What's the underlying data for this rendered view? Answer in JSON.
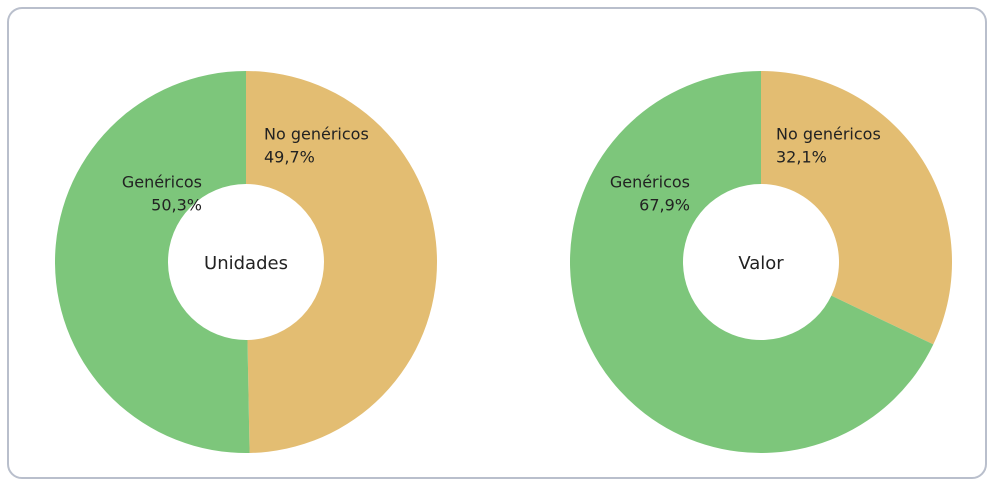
{
  "chart_data": [
    {
      "type": "pie",
      "donut": true,
      "title": "Unidades",
      "categories": [
        "No genéricos",
        "Genéricos"
      ],
      "values": [
        49.7,
        50.3
      ],
      "value_labels": [
        "49,7%",
        "50,3%"
      ],
      "colors": [
        "#e3bd72",
        "#7dc67b"
      ]
    },
    {
      "type": "pie",
      "donut": true,
      "title": "Valor",
      "categories": [
        "No genéricos",
        "Genéricos"
      ],
      "values": [
        32.1,
        67.9
      ],
      "value_labels": [
        "32,1%",
        "67,9%"
      ],
      "colors": [
        "#e3bd72",
        "#7dc67b"
      ]
    }
  ]
}
